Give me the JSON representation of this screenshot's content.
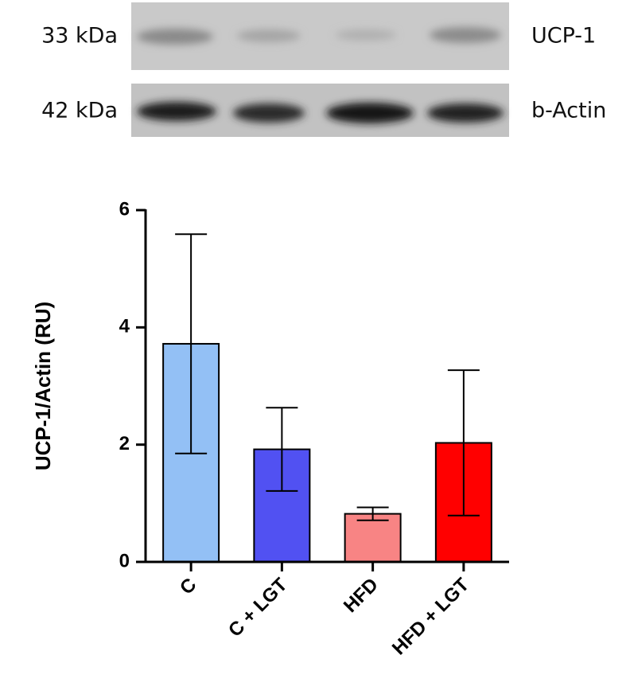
{
  "blot": {
    "rows": [
      {
        "size": "33 kDa",
        "protein": "UCP-1"
      },
      {
        "size": "42 kDa",
        "protein": "b-Actin"
      }
    ]
  },
  "chart_data": {
    "type": "bar",
    "y_label": "UCP-1/Actin (RU)",
    "categories": [
      "C",
      "C + LGT",
      "HFD",
      "HFD + LGT"
    ],
    "values": [
      3.72,
      1.92,
      0.82,
      2.03
    ],
    "errors": [
      1.87,
      0.71,
      0.11,
      1.24
    ],
    "colors": [
      "#93c0f5",
      "#5151f2",
      "#f88484",
      "#ff0000"
    ],
    "ylim": [
      0,
      6
    ],
    "yticks": [
      0,
      2,
      4,
      6
    ]
  }
}
